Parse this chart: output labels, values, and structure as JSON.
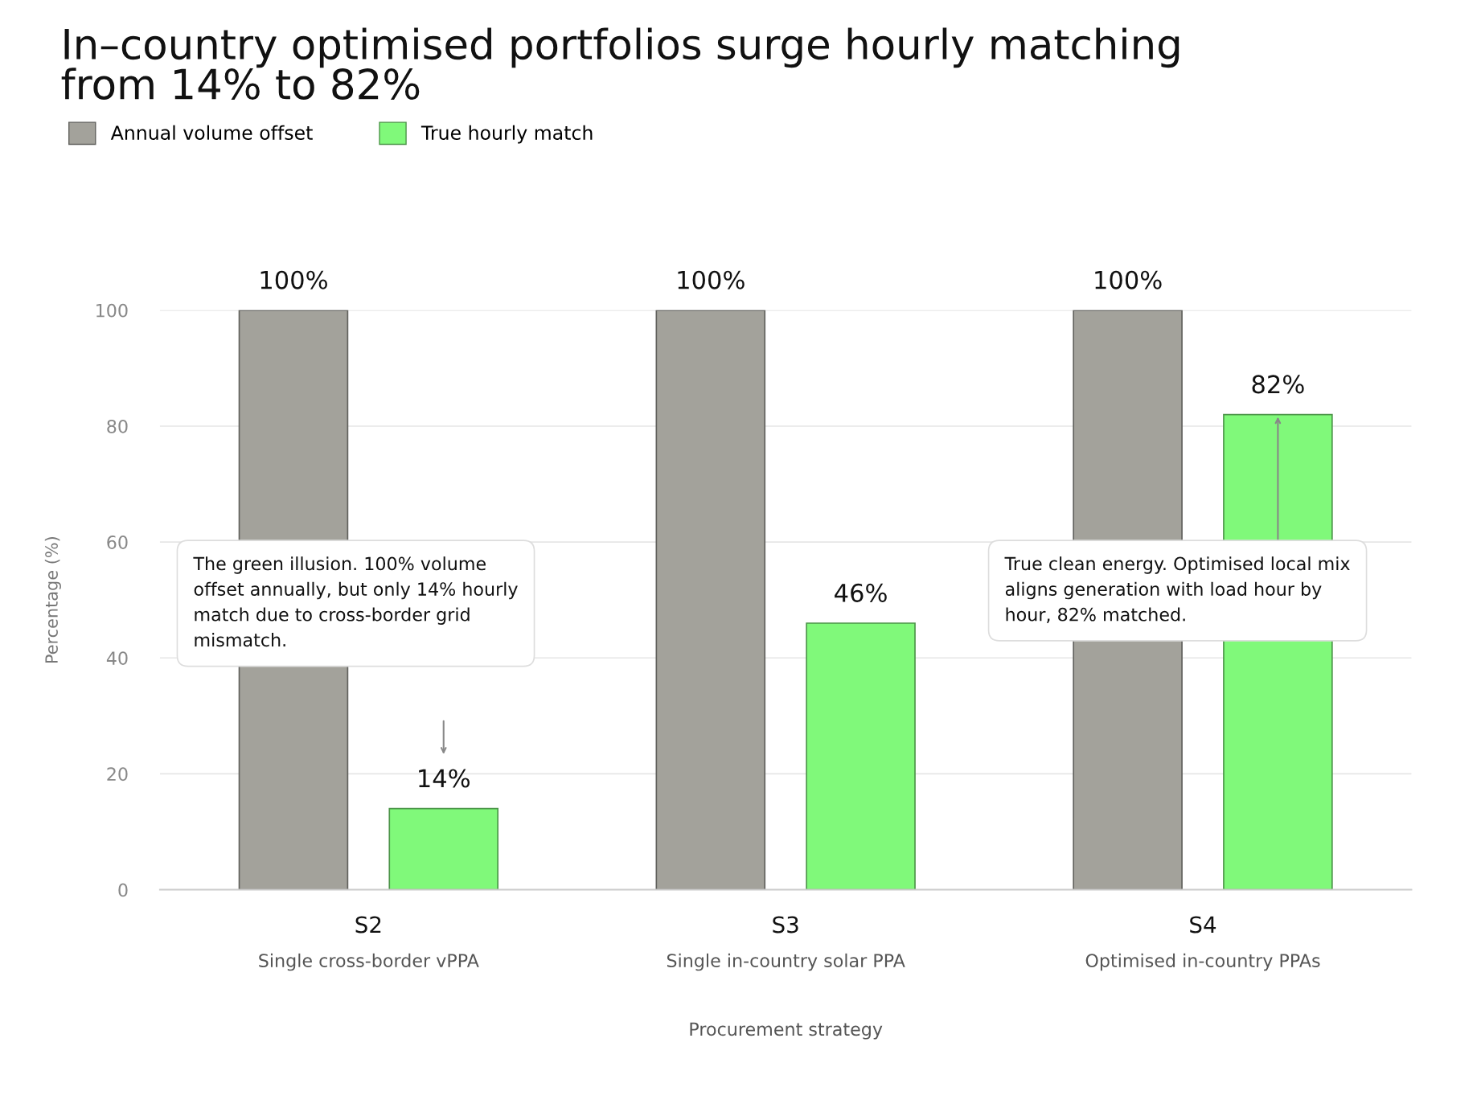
{
  "chart_data": {
    "type": "bar",
    "title": "In–country optimised portfolios surge hourly matching\nfrom 14% to 82%",
    "categories": [
      "S2\nSingle cross-border vPPA",
      "S3\nSingle in-country solar PPA",
      "S4\nOptimised in-country PPAs"
    ],
    "series": [
      {
        "name": "Annual volume offset",
        "color": "#a3a29b",
        "values": [
          100,
          100,
          100
        ],
        "value_labels": [
          "100%",
          "100%",
          "100%"
        ]
      },
      {
        "name": "True hourly match",
        "color": "#80f97a",
        "values": [
          14,
          46,
          82
        ],
        "value_labels": [
          "14%",
          "46%",
          "82%"
        ]
      }
    ],
    "xlabel": "Procurement strategy",
    "ylabel": "Percentage (%)",
    "ylim": [
      0,
      100
    ],
    "yticks": [
      0,
      20,
      40,
      60,
      80,
      100
    ],
    "grid": "y",
    "legend": "top left",
    "annotations": [
      "The green illusion. 100% volume\noffset annually, but only 14% hourly\nmatch due to cross-border grid\nmismatch.",
      "True clean energy. Optimised local mix\naligns generation with load hour by\nhour, 82% matched."
    ]
  }
}
